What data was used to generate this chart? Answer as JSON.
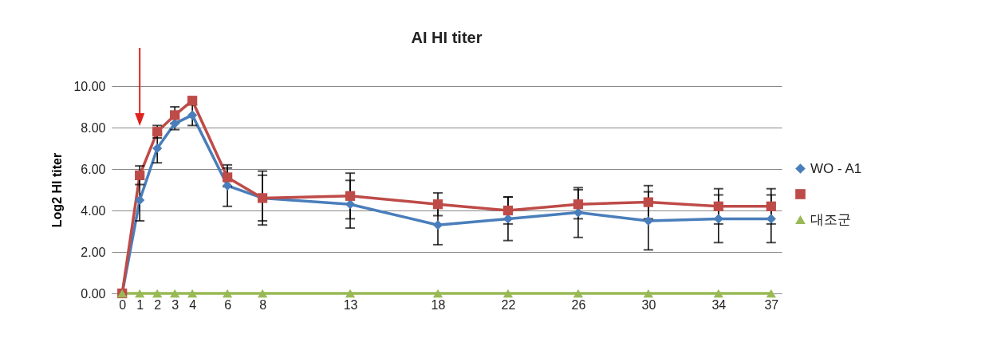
{
  "chart_data": {
    "type": "line",
    "title": "AI HI titer",
    "ylabel": "Log2 HI titer",
    "x": [
      0,
      1,
      2,
      3,
      4,
      6,
      8,
      13,
      18,
      22,
      26,
      30,
      34,
      37
    ],
    "xlim": [
      -0.6,
      37.6
    ],
    "xticks": [
      0,
      1,
      2,
      3,
      4,
      6,
      8,
      13,
      18,
      22,
      26,
      30,
      34,
      37
    ],
    "ylim": [
      0,
      10
    ],
    "yticks": [
      {
        "value": 0,
        "label": "0.00"
      },
      {
        "value": 2,
        "label": "2.00"
      },
      {
        "value": 4,
        "label": "4.00"
      },
      {
        "value": 6,
        "label": "6.00"
      },
      {
        "value": 8,
        "label": "8.00"
      },
      {
        "value": 10,
        "label": "10.00"
      }
    ],
    "grid": "y",
    "legend": "right",
    "series": [
      {
        "name": "WO - A1",
        "color": "#4a7ebb",
        "marker": "diamond",
        "values": [
          0,
          4.5,
          7.0,
          8.2,
          8.6,
          5.2,
          4.6,
          4.3,
          3.3,
          3.6,
          3.9,
          3.5,
          3.6,
          3.6
        ],
        "errors": [
          null,
          1.0,
          0.7,
          0.3,
          0.5,
          1.0,
          1.3,
          1.15,
          0.95,
          1.05,
          1.2,
          1.4,
          1.15,
          1.15
        ]
      },
      {
        "color": "#be4b48",
        "marker": "square",
        "values": [
          0,
          5.7,
          7.8,
          8.6,
          9.3,
          5.6,
          4.6,
          4.7,
          4.3,
          4.0,
          4.3,
          4.4,
          4.2,
          4.2
        ],
        "errors": [
          null,
          0.45,
          0.3,
          0.4,
          null,
          0.45,
          1.1,
          1.1,
          0.55,
          0.65,
          0.7,
          0.8,
          0.85,
          0.85
        ]
      },
      {
        "name": "대조군",
        "color": "#98b954",
        "marker": "triangle",
        "values": [
          0,
          0,
          0,
          0,
          0,
          0,
          0,
          0,
          0,
          0,
          0,
          0,
          0,
          0
        ]
      }
    ]
  }
}
